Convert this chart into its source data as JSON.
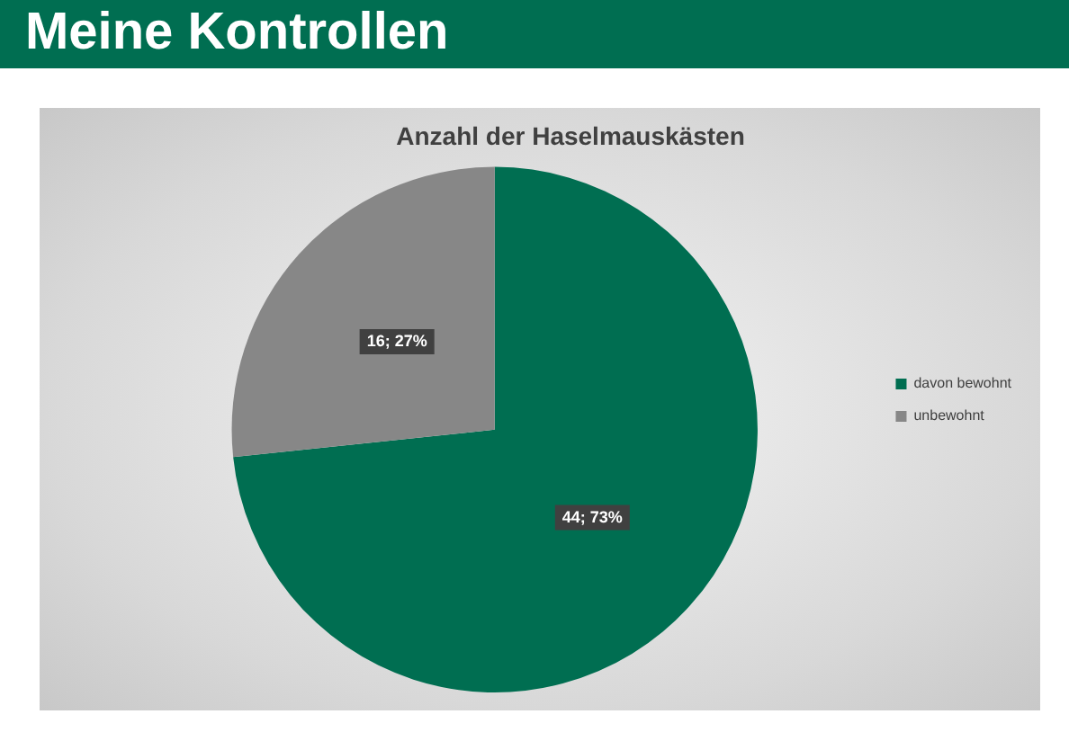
{
  "chart_data": {
    "type": "pie",
    "title": "Meine Kontrollen",
    "subtitle": "Anzahl der Haselmauskästen",
    "categories": [
      "davon bewohnt",
      "unbewohnt"
    ],
    "values": [
      44,
      16
    ],
    "colors": [
      "#006e51",
      "#878787"
    ],
    "value_labels": [
      "44; 73%",
      "16; 27%"
    ],
    "legend": "right"
  }
}
